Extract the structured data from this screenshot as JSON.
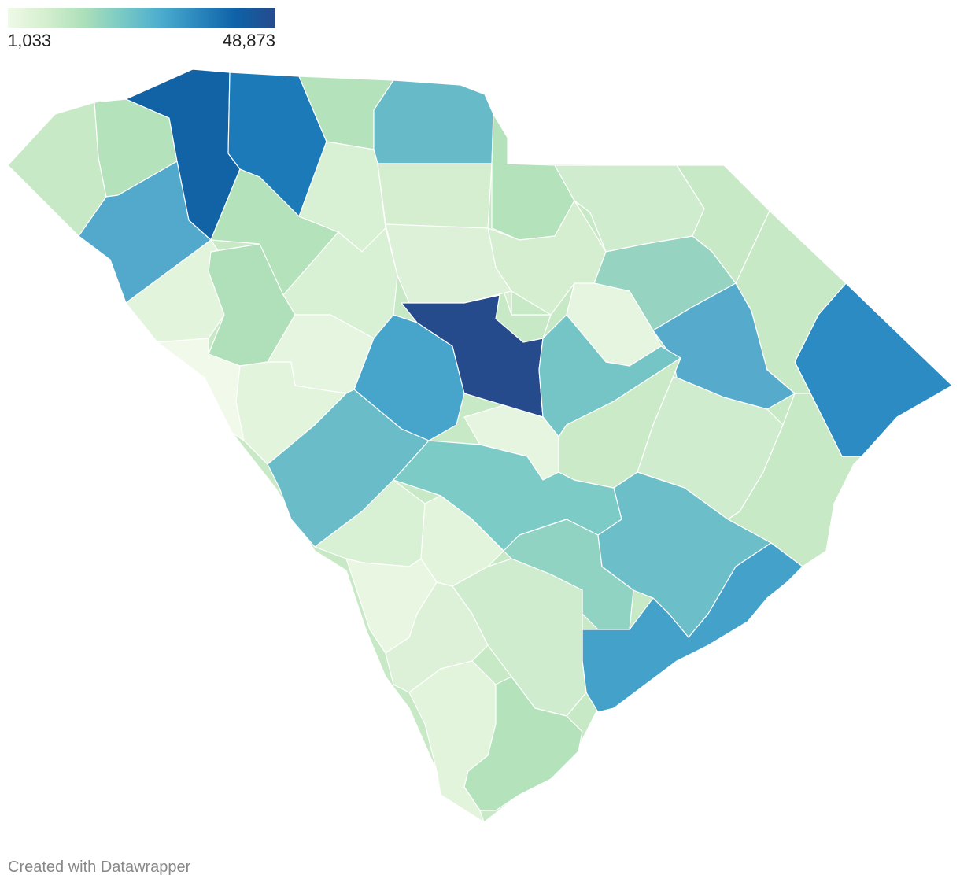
{
  "legend": {
    "min_label": "1,033",
    "max_label": "48,873",
    "colors": [
      "#eff9e8",
      "#d5efcf",
      "#aee0ba",
      "#7bcbc4",
      "#4cadcf",
      "#2b87bd",
      "#0e62a8",
      "#254b8c"
    ]
  },
  "credit": "Created with Datawrapper",
  "region_colors": {
    "outline": "#c8e9c6",
    "oconee": "#c8e9c6",
    "pickens": "#b3e2bb",
    "greenville": "#1262a6",
    "spartanburg": "#1d7ab8",
    "cherokee": "#b4e2bb",
    "york": "#67bac8",
    "chesterfield": "#b3e2bb",
    "marlboro": "#cfecce",
    "dillon": "#c8e9c6",
    "horry": "#2c8bc2",
    "anderson": "#52a9cc",
    "abbeville": "#e3f4dd",
    "greenwood": "#b0e0b9",
    "laurens": "#b3e2bb",
    "union": "#d8f0d3",
    "chester": "#d4eecf",
    "lancaster": "#d4eecf",
    "fairfield": "#dcf1d7",
    "kershaw": "#c8e9c6",
    "darlington": "#96d4c1",
    "florence": "#56aacc",
    "marion": "#c8e9c6",
    "mccormick": "#f1f9ea",
    "edgefield": "#e3f4dd",
    "newberry": "#d8f0d3",
    "saluda": "#e5f5df",
    "lexington": "#47a5cb",
    "richland": "#254b8c",
    "lee": "#e5f5df",
    "sumter": "#75c4c6",
    "aiken": "#69bcc8",
    "calhoun": "#e5f5df",
    "orangeburg": "#7dcbc6",
    "clarendon": "#cbeac7",
    "williamsburg": "#cfecce",
    "georgetown": "#c8e9c6",
    "barnwell": "#d8f0d3",
    "bamberg": "#e2f4dc",
    "dorchester": "#91d3c3",
    "berkeley": "#6cbec8",
    "charleston": "#43a1ca",
    "allendale": "#e9f6e2",
    "hampton": "#dcf1d7",
    "colleton": "#cfecce",
    "jasper": "#e2f4dc",
    "beaufort": "#b3e2bb"
  }
}
